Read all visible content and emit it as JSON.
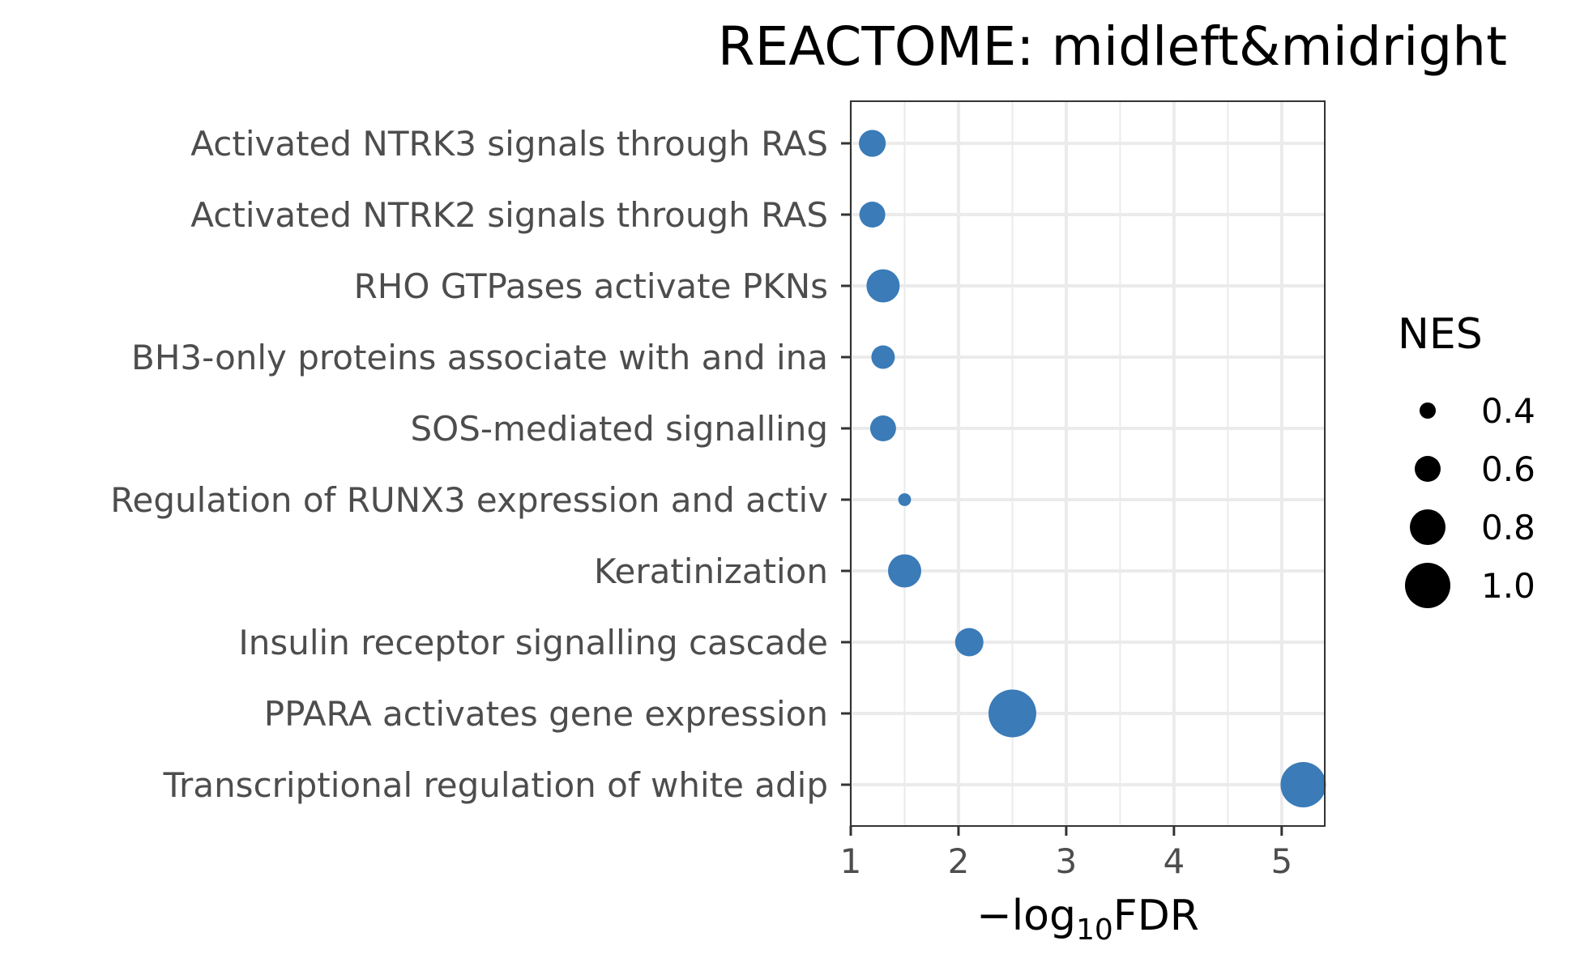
{
  "chart_data": {
    "type": "scatter",
    "title": "REACTOME: midleft&midright",
    "xlabel": {
      "prefix": "−log",
      "sub": "10",
      "suffix": "FDR"
    },
    "xlim": [
      1.0,
      5.4
    ],
    "xticks": [
      1,
      2,
      3,
      4,
      5
    ],
    "grid": true,
    "point_color": "#3a7bb8",
    "categories": [
      "Activated NTRK3 signals through RAS",
      "Activated NTRK2 signals through RAS",
      "RHO GTPases activate PKNs",
      "BH3-only proteins associate with and ina",
      "SOS-mediated signalling",
      "Regulation of RUNX3 expression and activ",
      "Keratinization",
      "Insulin receptor signalling cascade",
      "PPARA activates gene expression",
      "Transcriptional regulation of white adip"
    ],
    "points": [
      {
        "y": "Activated NTRK3 signals through RAS",
        "x": 1.2,
        "nes": 0.62
      },
      {
        "y": "Activated NTRK2 signals through RAS",
        "x": 1.2,
        "nes": 0.6
      },
      {
        "y": "RHO GTPases activate PKNs",
        "x": 1.3,
        "nes": 0.75
      },
      {
        "y": "BH3-only proteins associate with and ina",
        "x": 1.3,
        "nes": 0.55
      },
      {
        "y": "SOS-mediated signalling",
        "x": 1.3,
        "nes": 0.6
      },
      {
        "y": "Regulation of RUNX3 expression and activ",
        "x": 1.5,
        "nes": 0.33
      },
      {
        "y": "Keratinization",
        "x": 1.5,
        "nes": 0.75
      },
      {
        "y": "Insulin receptor signalling cascade",
        "x": 2.1,
        "nes": 0.65
      },
      {
        "y": "PPARA activates gene expression",
        "x": 2.5,
        "nes": 1.05
      },
      {
        "y": "Transcriptional regulation of white adip",
        "x": 5.2,
        "nes": 1.0
      }
    ],
    "legend": {
      "title": "NES",
      "position": "right",
      "entries": [
        {
          "label": "0.4",
          "nes": 0.4
        },
        {
          "label": "0.6",
          "nes": 0.6
        },
        {
          "label": "0.8",
          "nes": 0.8
        },
        {
          "label": "1.0",
          "nes": 1.0
        }
      ]
    }
  }
}
